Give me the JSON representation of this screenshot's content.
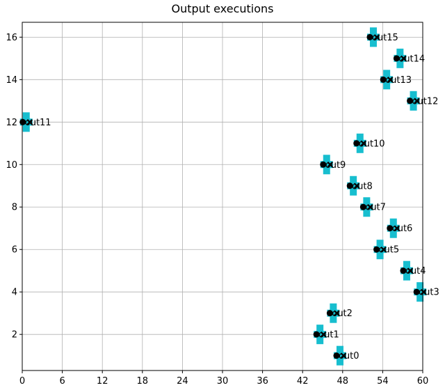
{
  "chart_data": {
    "type": "scatter",
    "title": "Output executions",
    "xlabel": "",
    "ylabel": "",
    "xlim": [
      0,
      60
    ],
    "ylim": [
      0.3,
      16.7
    ],
    "xticks": [
      0,
      6,
      12,
      18,
      24,
      30,
      36,
      42,
      48,
      54,
      60
    ],
    "yticks": [
      2,
      4,
      6,
      8,
      10,
      12,
      14,
      16
    ],
    "grid": true,
    "colors": {
      "cross": "#17becf",
      "dot": "#000000",
      "xmark": "#000000"
    },
    "points": [
      {
        "label": "out0",
        "x": 47.6,
        "y": 1
      },
      {
        "label": "out1",
        "x": 44.6,
        "y": 2
      },
      {
        "label": "out2",
        "x": 46.6,
        "y": 3
      },
      {
        "label": "out3",
        "x": 59.6,
        "y": 4
      },
      {
        "label": "out4",
        "x": 57.6,
        "y": 5
      },
      {
        "label": "out5",
        "x": 53.6,
        "y": 6
      },
      {
        "label": "out6",
        "x": 55.6,
        "y": 7
      },
      {
        "label": "out7",
        "x": 51.6,
        "y": 8
      },
      {
        "label": "out8",
        "x": 49.6,
        "y": 9
      },
      {
        "label": "out9",
        "x": 45.6,
        "y": 10
      },
      {
        "label": "out10",
        "x": 50.6,
        "y": 11
      },
      {
        "label": "out11",
        "x": 0.6,
        "y": 12
      },
      {
        "label": "out12",
        "x": 58.6,
        "y": 13
      },
      {
        "label": "out13",
        "x": 54.6,
        "y": 14
      },
      {
        "label": "out14",
        "x": 56.6,
        "y": 15
      },
      {
        "label": "out15",
        "x": 52.6,
        "y": 16
      }
    ]
  }
}
